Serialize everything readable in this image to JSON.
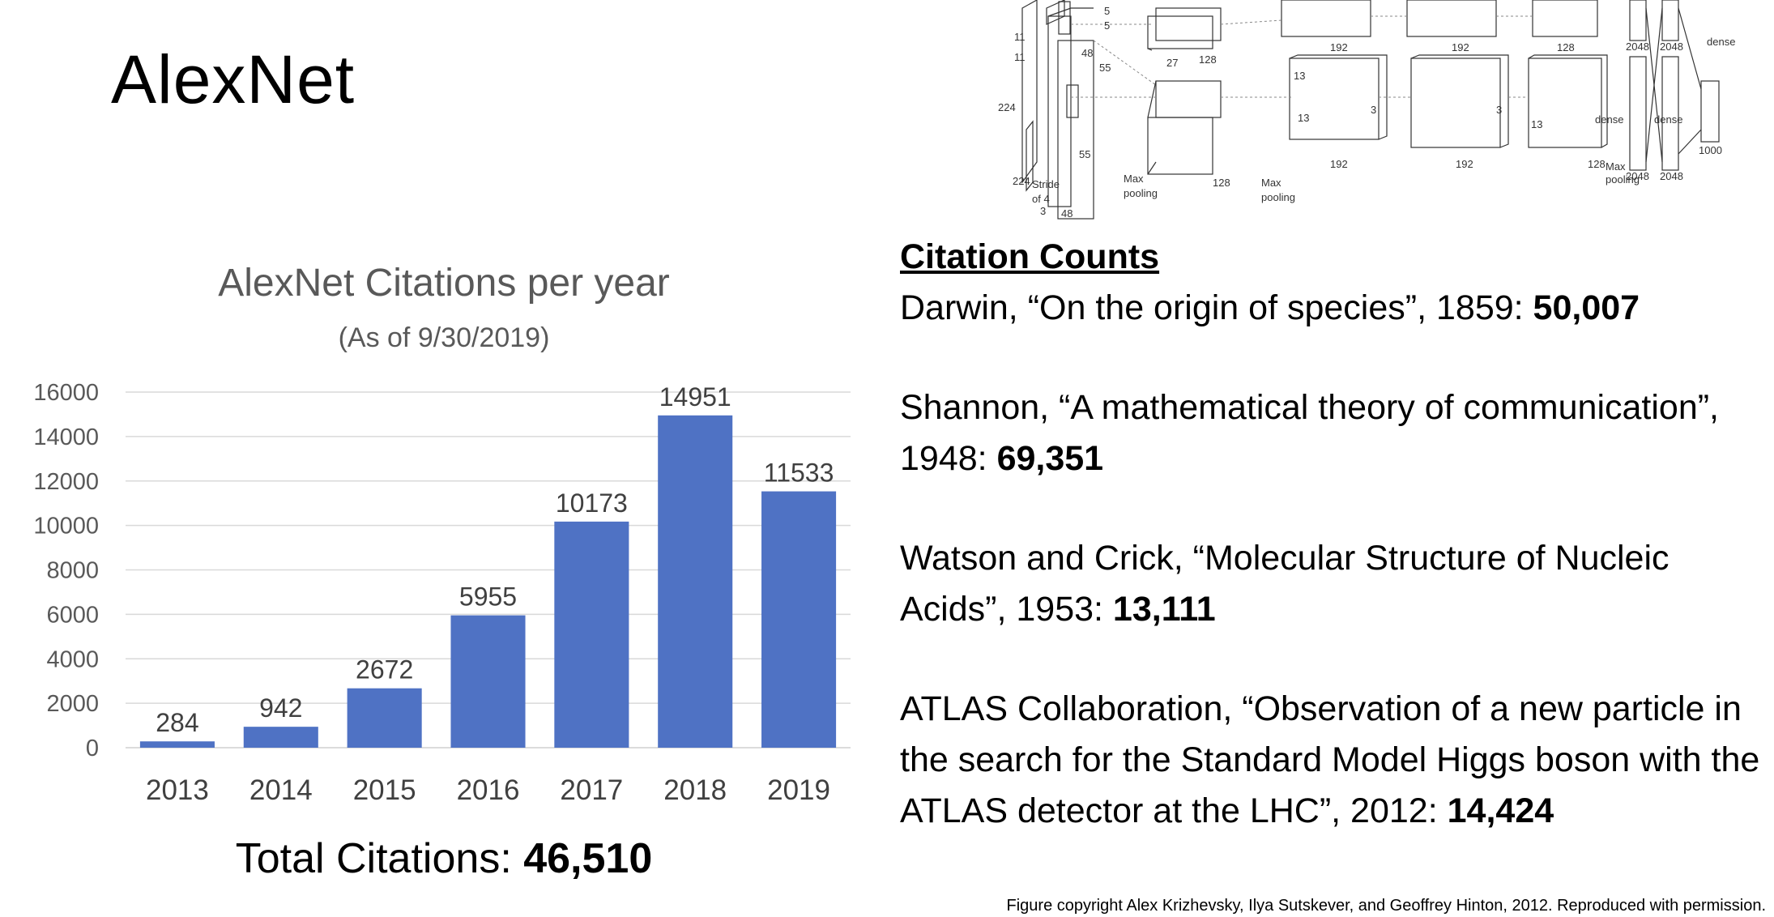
{
  "slide": {
    "title": "AlexNet"
  },
  "chart_data": {
    "type": "bar",
    "title": "AlexNet Citations per year",
    "subtitle": "(As of 9/30/2019)",
    "categories": [
      "2013",
      "2014",
      "2015",
      "2016",
      "2017",
      "2018",
      "2019"
    ],
    "values": [
      284,
      942,
      2672,
      5955,
      10173,
      14951,
      11533
    ],
    "ylim": [
      0,
      16000
    ],
    "yticks": [
      0,
      2000,
      4000,
      6000,
      8000,
      10000,
      12000,
      14000,
      16000
    ],
    "grid": true,
    "bar_color": "#4f72c4",
    "legend": "none"
  },
  "total": {
    "label": "Total Citations: ",
    "value": "46,510"
  },
  "diagram": {
    "labels": [
      "5",
      "5",
      "48",
      "55",
      "27",
      "128",
      "192",
      "192",
      "128",
      "2048",
      "2048",
      "dense",
      "224",
      "11",
      "11",
      "224",
      "Stride",
      "of 4",
      "3",
      "48",
      "55",
      "Max",
      "pooling",
      "128",
      "Max",
      "pooling",
      "13",
      "13",
      "3",
      "3",
      "192",
      "192",
      "128",
      "Max",
      "pooling",
      "13",
      "dense",
      "dense",
      "1000",
      "2048",
      "2048"
    ]
  },
  "citations": {
    "heading": "Citation Counts",
    "entries": [
      {
        "text": "Darwin, “On the origin of species”, 1859: ",
        "count": "50,007"
      },
      {
        "text": "Shannon, “A mathematical theory of communication”, 1948: ",
        "count": "69,351"
      },
      {
        "text": "Watson and Crick, “Molecular Structure of Nucleic Acids”, 1953: ",
        "count": "13,111"
      },
      {
        "text": "ATLAS Collaboration, “Observation of a new particle in the search for the Standard Model Higgs boson with the ATLAS detector at the LHC”, 2012: ",
        "count": "14,424"
      }
    ]
  },
  "footer": {
    "copyright": "Figure copyright Alex Krizhevsky, Ilya Sutskever, and Geoffrey Hinton, 2012. Reproduced with permission."
  }
}
